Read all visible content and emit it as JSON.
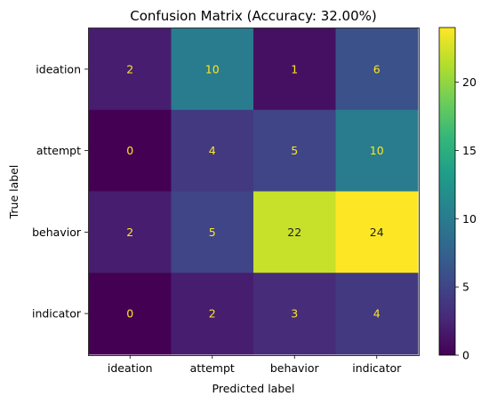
{
  "chart_data": {
    "type": "heatmap",
    "title": "Confusion Matrix (Accuracy: 32.00%)",
    "xlabel": "Predicted label",
    "ylabel": "True label",
    "x_categories": [
      "ideation",
      "attempt",
      "behavior",
      "indicator"
    ],
    "y_categories": [
      "ideation",
      "attempt",
      "behavior",
      "indicator"
    ],
    "values": [
      [
        2,
        10,
        1,
        6
      ],
      [
        0,
        4,
        5,
        10
      ],
      [
        2,
        5,
        22,
        24
      ],
      [
        0,
        2,
        3,
        4
      ]
    ],
    "colormap": "viridis",
    "value_range": [
      0,
      24
    ],
    "colorbar_ticks": [
      0,
      5,
      10,
      15,
      20
    ],
    "text_color_dark_cells": "#fde725",
    "text_color_light_cells": "#222222"
  }
}
